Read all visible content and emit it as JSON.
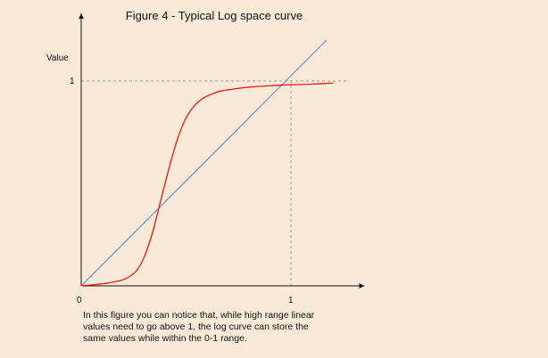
{
  "chart_data": {
    "type": "line",
    "title": "Figure 4 - Typical Log space curve",
    "ylabel": "Value",
    "xlabel": "",
    "x_ticks": [
      {
        "value": 0,
        "label": "0"
      },
      {
        "value": 1,
        "label": "1"
      }
    ],
    "y_ticks": [
      {
        "value": 1,
        "label": "1"
      }
    ],
    "xlim": [
      0,
      1.35
    ],
    "ylim": [
      0,
      1.33
    ],
    "grid": false,
    "reference_lines": [
      {
        "type": "horizontal",
        "y": 1,
        "x_from": 0,
        "x_to": 1.27,
        "style": "dashed",
        "color": "#999999"
      },
      {
        "type": "vertical",
        "x": 1,
        "y_from": 0,
        "y_to": 1,
        "style": "dashed",
        "color": "#999999"
      }
    ],
    "series": [
      {
        "color": "#6f8fd8",
        "x": [
          0,
          1.17
        ],
        "y": [
          0,
          1.2
        ]
      },
      {
        "color": "#ff0000",
        "x": [
          0,
          0.1,
          0.2,
          0.26,
          0.3,
          0.34,
          0.38,
          0.42,
          0.46,
          0.5,
          0.54,
          0.58,
          0.62,
          0.66,
          0.72,
          0.8,
          0.9,
          1.0,
          1.1,
          1.2
        ],
        "y": [
          0,
          0.01,
          0.03,
          0.07,
          0.14,
          0.26,
          0.42,
          0.58,
          0.72,
          0.82,
          0.88,
          0.915,
          0.935,
          0.95,
          0.96,
          0.97,
          0.977,
          0.982,
          0.985,
          0.99
        ]
      }
    ]
  },
  "caption": "In this figure you can notice that, while high range linear values need to go above 1, the log curve can store the same values while within the 0-1 range."
}
